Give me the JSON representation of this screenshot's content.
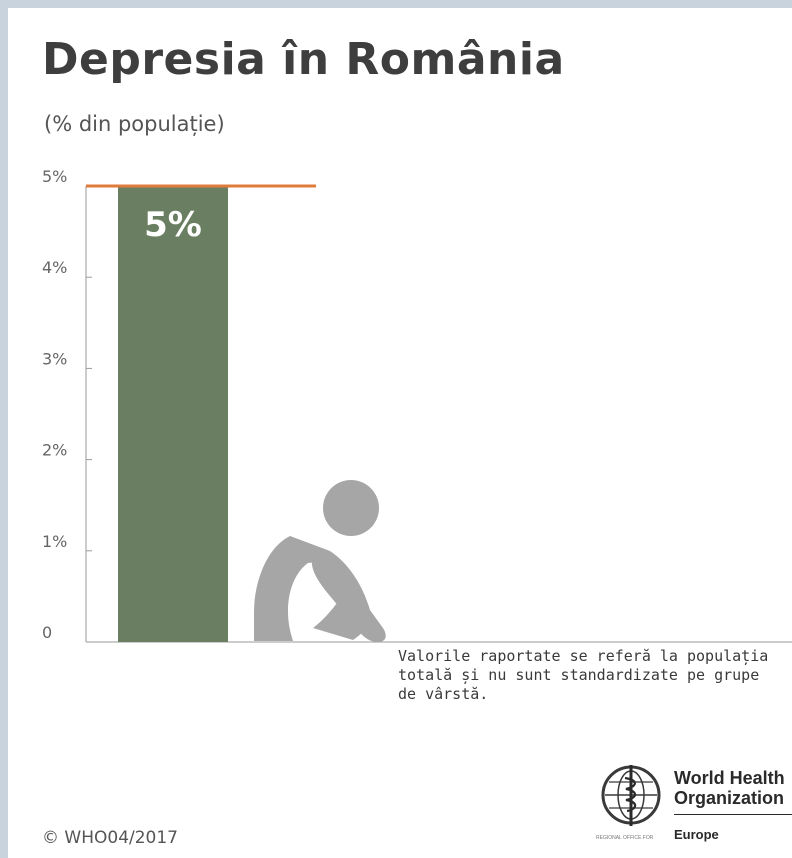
{
  "chart_data": {
    "type": "bar",
    "title": "Depresia în România",
    "subtitle": "(% din populație)",
    "categories": [
      ""
    ],
    "values": [
      5
    ],
    "data_labels": [
      "5%"
    ],
    "reference_line": 5,
    "ylim": [
      0,
      5
    ],
    "yticks": [
      0,
      1,
      2,
      3,
      4,
      5
    ],
    "ytick_labels": [
      "0",
      "1%",
      "2%",
      "3%",
      "4%",
      "5%"
    ],
    "grid": false,
    "colors": {
      "bar": "#6a7f62",
      "reference_line": "#e07b3b",
      "axis": "#9a9a9a",
      "figure": "#a6a6a6"
    }
  },
  "footer": {
    "note": "Valorile raportate se referă la populația\ntotală și nu sunt standardizate pe grupe\nde vârstă.",
    "copyright": "© WHO04/2017",
    "org_name": "World Health\nOrganization",
    "org_office": "REGIONAL OFFICE FOR",
    "org_region": "Europe"
  },
  "icons": {
    "figure": "sitting-person-icon",
    "logo": "who-emblem-icon"
  }
}
